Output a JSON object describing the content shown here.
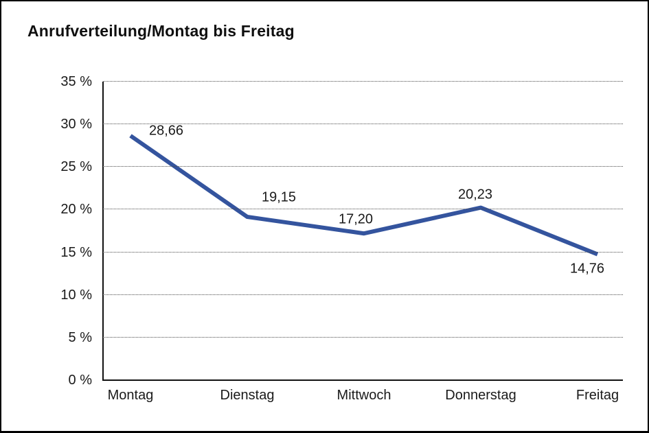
{
  "chart_data": {
    "type": "line",
    "title": "Anrufverteilung/Montag bis Freitag",
    "categories": [
      "Montag",
      "Dienstag",
      "Mittwoch",
      "Donnerstag",
      "Freitag"
    ],
    "values": [
      28.66,
      19.15,
      17.2,
      20.23,
      14.76
    ],
    "point_labels": [
      "28,66",
      "19,15",
      "17,20",
      "20,23",
      "14,76"
    ],
    "yticks": [
      {
        "value": 35,
        "label": "35 %"
      },
      {
        "value": 30,
        "label": "30 %"
      },
      {
        "value": 25,
        "label": "25 %"
      },
      {
        "value": 20,
        "label": "20 %"
      },
      {
        "value": 15,
        "label": "15 %"
      },
      {
        "value": 10,
        "label": "10 %"
      },
      {
        "value": 5,
        "label": "5 %"
      },
      {
        "value": 0,
        "label": "0 %"
      }
    ],
    "ylim": [
      0,
      35
    ],
    "xlabel": "",
    "ylabel": "",
    "grid": "horizontal-dotted",
    "legend": "none",
    "line_color": "#34549e"
  },
  "colors": {
    "line": "#34549e",
    "text": "#1a1a1a",
    "grid": "#4a4a4a",
    "frame": "#000000",
    "background": "#ffffff"
  }
}
